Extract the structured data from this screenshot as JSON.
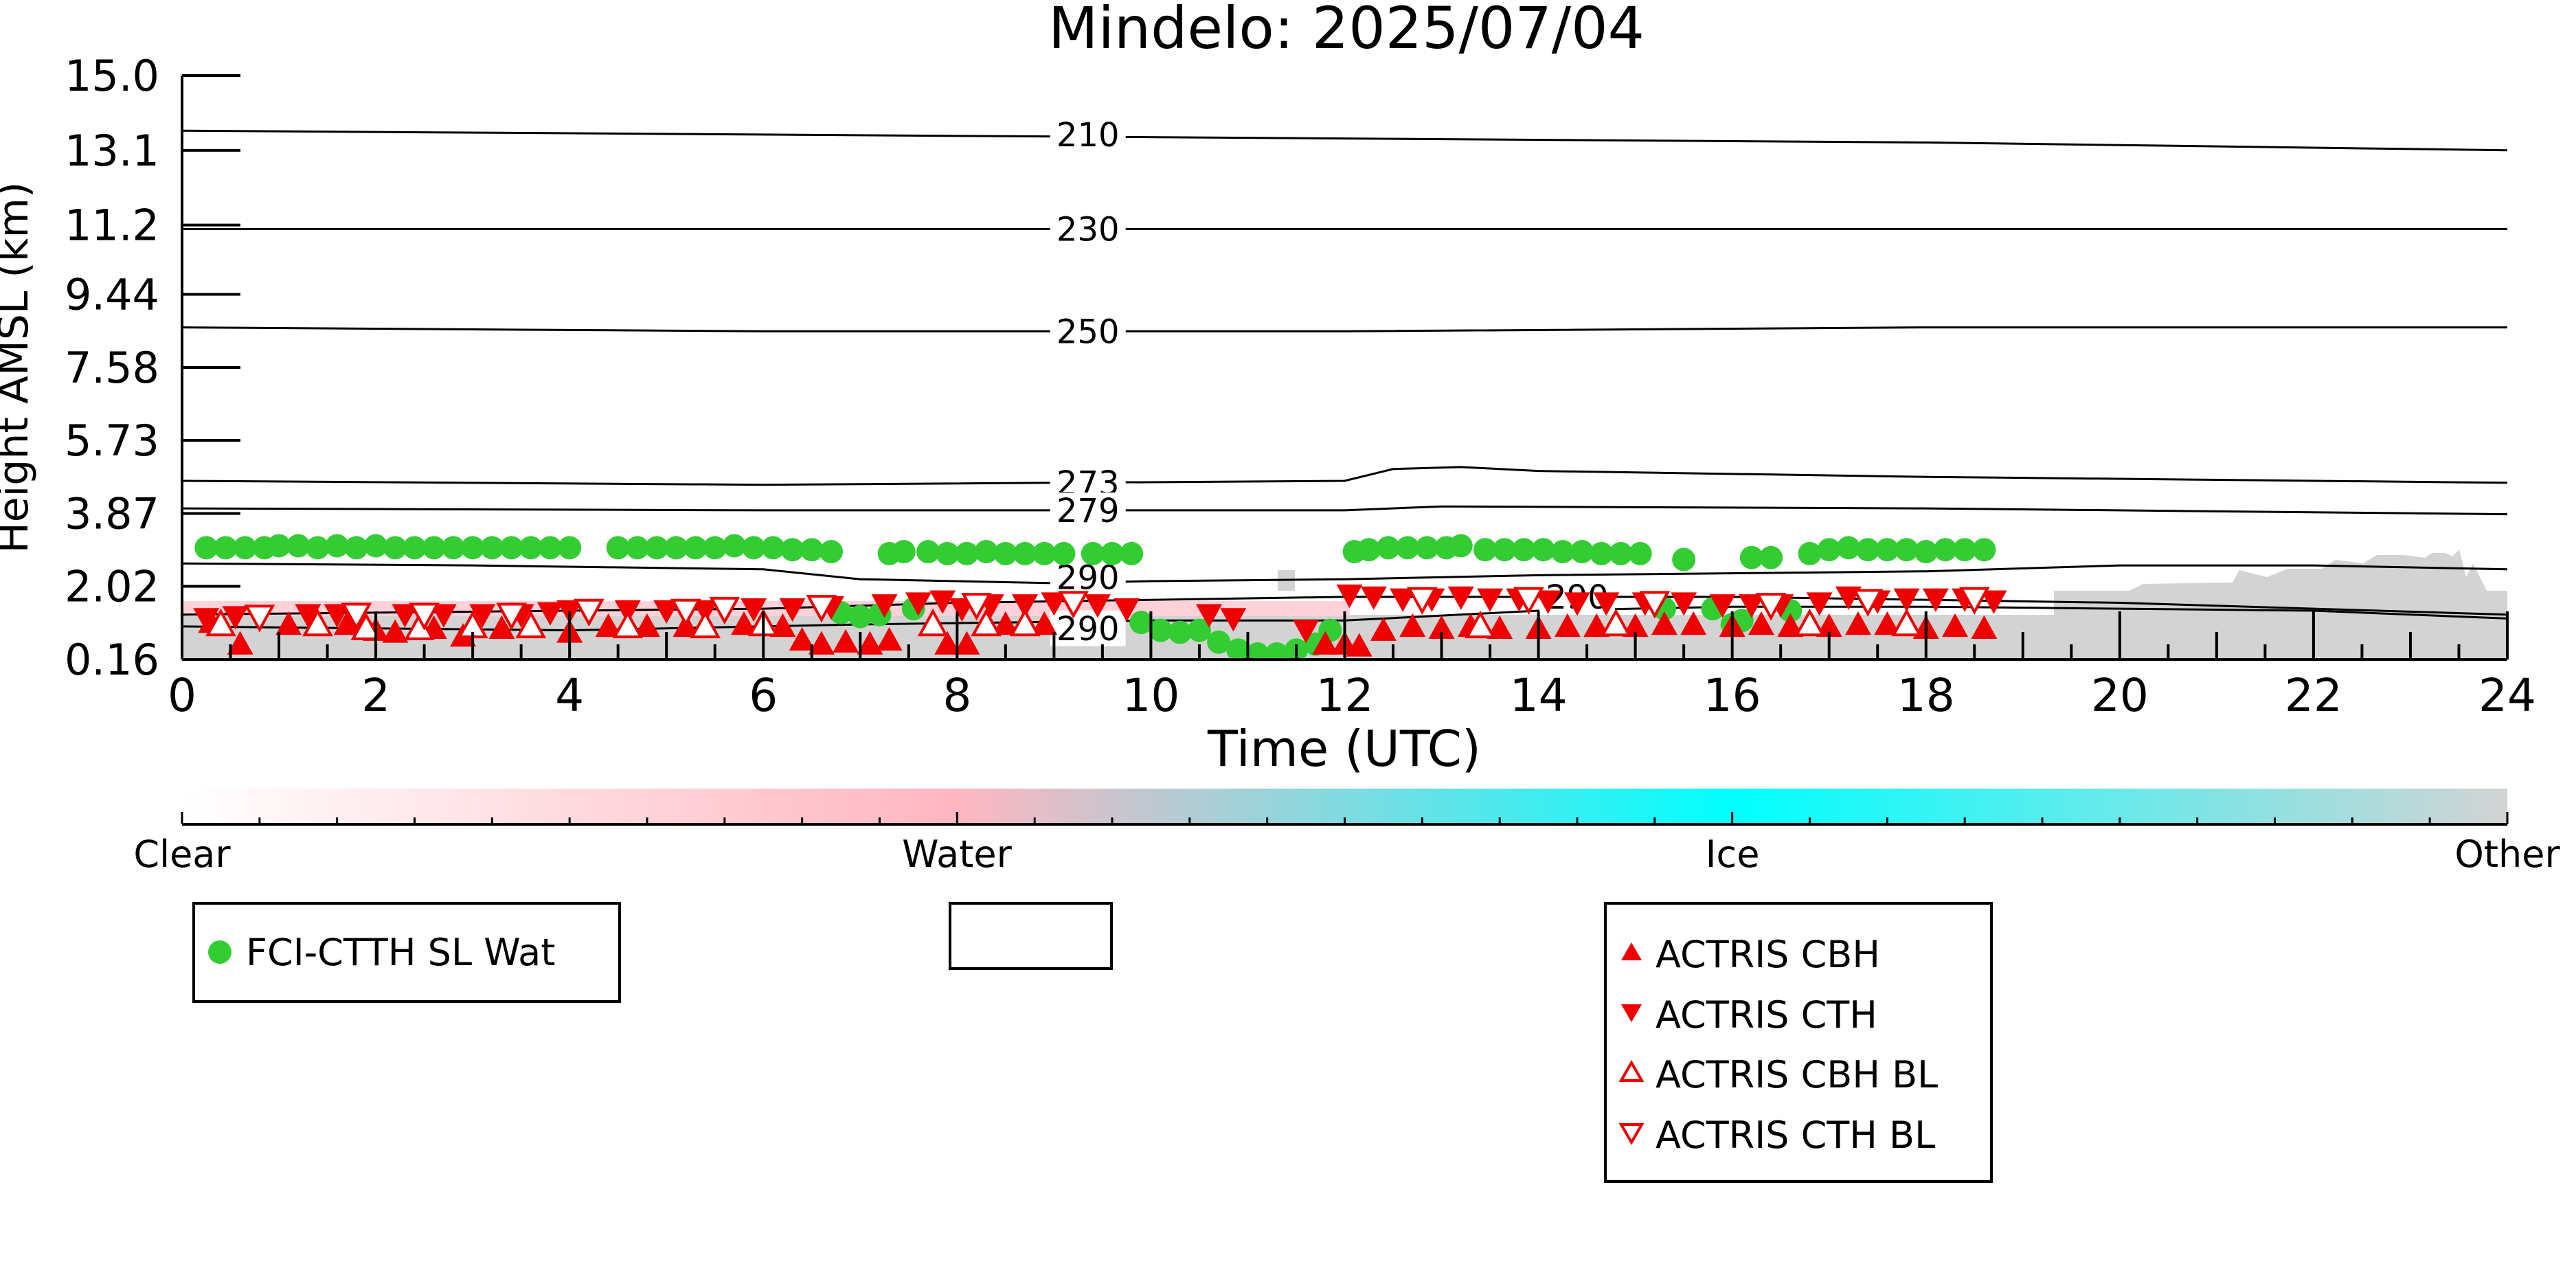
{
  "chart_data": {
    "type": "scatter",
    "title": "Mindelo: 2025/07/04",
    "xlabel": "Time (UTC)",
    "ylabel": "Height AMSL (km)",
    "xlim": [
      0,
      24
    ],
    "x_ticks": [
      "0",
      "2",
      "4",
      "6",
      "8",
      "10",
      "12",
      "14",
      "16",
      "18",
      "20",
      "22",
      "24"
    ],
    "y_ticks": [
      "0.16",
      "2.02",
      "3.87",
      "5.73",
      "7.58",
      "9.44",
      "11.2",
      "13.1",
      "15.0"
    ],
    "ylim": [
      0.16,
      15.0
    ],
    "grid": false,
    "contours": [
      {
        "label": "210",
        "points": [
          [
            0,
            13.6
          ],
          [
            6,
            13.5
          ],
          [
            12,
            13.4
          ],
          [
            18,
            13.3
          ],
          [
            24,
            13.1
          ]
        ]
      },
      {
        "label": "230",
        "points": [
          [
            0,
            11.1
          ],
          [
            6,
            11.1
          ],
          [
            12,
            11.1
          ],
          [
            18,
            11.1
          ],
          [
            24,
            11.1
          ]
        ]
      },
      {
        "label": "250",
        "points": [
          [
            0,
            8.6
          ],
          [
            6,
            8.5
          ],
          [
            12,
            8.5
          ],
          [
            18,
            8.6
          ],
          [
            24,
            8.6
          ]
        ]
      },
      {
        "label": "273",
        "points": [
          [
            0,
            4.7
          ],
          [
            6,
            4.6
          ],
          [
            12,
            4.7
          ],
          [
            12.5,
            5.0
          ],
          [
            13.2,
            5.05
          ],
          [
            14,
            4.95
          ],
          [
            18,
            4.8
          ],
          [
            24,
            4.65
          ]
        ]
      },
      {
        "label": "279",
        "points": [
          [
            0,
            4.0
          ],
          [
            6,
            3.95
          ],
          [
            12,
            3.95
          ],
          [
            13,
            4.05
          ],
          [
            18,
            4.0
          ],
          [
            24,
            3.85
          ]
        ]
      },
      {
        "label": "290",
        "points": [
          [
            0,
            2.6
          ],
          [
            3,
            2.55
          ],
          [
            6,
            2.45
          ],
          [
            7,
            2.2
          ],
          [
            9,
            2.1
          ],
          [
            10,
            2.15
          ],
          [
            12,
            2.2
          ],
          [
            14,
            2.3
          ],
          [
            18,
            2.4
          ],
          [
            20,
            2.55
          ],
          [
            22,
            2.55
          ],
          [
            24,
            2.45
          ]
        ]
      },
      {
        "label": "290",
        "points": [
          [
            0,
            1.0
          ],
          [
            4,
            0.9
          ],
          [
            7,
            1.05
          ],
          [
            10,
            1.15
          ],
          [
            12,
            1.15
          ],
          [
            14,
            1.4
          ],
          [
            16,
            1.5
          ],
          [
            18,
            1.5
          ],
          [
            22,
            1.4
          ],
          [
            24,
            1.2
          ]
        ]
      },
      {
        "label": "290",
        "points": [
          [
            0,
            1.3
          ],
          [
            6,
            1.45
          ],
          [
            8,
            1.6
          ],
          [
            12,
            1.75
          ],
          [
            16,
            1.75
          ],
          [
            20,
            1.6
          ],
          [
            24,
            1.3
          ]
        ]
      }
    ],
    "contour_label_positions": [
      {
        "label": "210",
        "x": 9.35,
        "y": 13.5
      },
      {
        "label": "230",
        "x": 9.35,
        "y": 11.1
      },
      {
        "label": "250",
        "x": 9.35,
        "y": 8.5
      },
      {
        "label": "273",
        "x": 9.35,
        "y": 4.65
      },
      {
        "label": "279",
        "x": 9.35,
        "y": 3.95
      },
      {
        "label": "290",
        "x": 9.35,
        "y": 2.25
      },
      {
        "label": "290",
        "x": 14.4,
        "y": 1.75
      },
      {
        "label": "290",
        "x": 9.35,
        "y": 0.95
      }
    ],
    "cloud_type_colorbar": {
      "labels": [
        "Clear",
        "Water",
        "Ice",
        "Other"
      ],
      "colors": [
        "#ffffff",
        "#ffb6c1",
        "#00ffff",
        "#d3d3d3"
      ]
    },
    "series": [
      {
        "name": "FCI-CTTH SL Wat",
        "marker": "circle",
        "color": "#33cc33",
        "points": [
          [
            0.25,
            3.0
          ],
          [
            0.45,
            3.0
          ],
          [
            0.65,
            3.0
          ],
          [
            0.85,
            3.0
          ],
          [
            1.0,
            3.05
          ],
          [
            1.2,
            3.05
          ],
          [
            1.4,
            3.0
          ],
          [
            1.6,
            3.05
          ],
          [
            1.8,
            3.0
          ],
          [
            2.0,
            3.05
          ],
          [
            2.2,
            3.0
          ],
          [
            2.4,
            3.0
          ],
          [
            2.6,
            3.0
          ],
          [
            2.8,
            3.0
          ],
          [
            3.0,
            3.0
          ],
          [
            3.2,
            3.0
          ],
          [
            3.4,
            3.0
          ],
          [
            3.6,
            3.0
          ],
          [
            3.8,
            3.0
          ],
          [
            4.0,
            3.0
          ],
          [
            4.5,
            3.0
          ],
          [
            4.7,
            3.0
          ],
          [
            4.9,
            3.0
          ],
          [
            5.1,
            3.0
          ],
          [
            5.3,
            3.0
          ],
          [
            5.5,
            3.0
          ],
          [
            5.7,
            3.05
          ],
          [
            5.9,
            3.0
          ],
          [
            6.1,
            3.0
          ],
          [
            6.3,
            2.95
          ],
          [
            6.5,
            2.95
          ],
          [
            6.7,
            2.9
          ],
          [
            7.3,
            2.85
          ],
          [
            7.45,
            2.9
          ],
          [
            7.7,
            2.9
          ],
          [
            7.9,
            2.85
          ],
          [
            8.1,
            2.85
          ],
          [
            8.3,
            2.9
          ],
          [
            8.5,
            2.85
          ],
          [
            8.7,
            2.85
          ],
          [
            8.9,
            2.85
          ],
          [
            9.1,
            2.85
          ],
          [
            9.4,
            2.85
          ],
          [
            9.6,
            2.85
          ],
          [
            9.8,
            2.85
          ],
          [
            6.8,
            1.35
          ],
          [
            7.0,
            1.25
          ],
          [
            7.2,
            1.3
          ],
          [
            7.55,
            1.45
          ],
          [
            9.9,
            1.1
          ],
          [
            10.1,
            0.9
          ],
          [
            10.3,
            0.85
          ],
          [
            10.5,
            0.9
          ],
          [
            10.7,
            0.6
          ],
          [
            10.9,
            0.4
          ],
          [
            11.1,
            0.3
          ],
          [
            11.3,
            0.3
          ],
          [
            11.5,
            0.4
          ],
          [
            11.7,
            0.55
          ],
          [
            11.85,
            0.9
          ],
          [
            12.1,
            2.9
          ],
          [
            12.25,
            2.95
          ],
          [
            12.45,
            3.0
          ],
          [
            12.65,
            3.0
          ],
          [
            12.85,
            3.0
          ],
          [
            13.05,
            3.0
          ],
          [
            13.2,
            3.05
          ],
          [
            13.45,
            2.95
          ],
          [
            13.65,
            2.95
          ],
          [
            13.85,
            2.95
          ],
          [
            14.05,
            2.95
          ],
          [
            14.25,
            2.9
          ],
          [
            14.45,
            2.9
          ],
          [
            14.65,
            2.85
          ],
          [
            14.85,
            2.85
          ],
          [
            15.05,
            2.85
          ],
          [
            15.5,
            2.7
          ],
          [
            16.2,
            2.75
          ],
          [
            16.4,
            2.75
          ],
          [
            16.8,
            2.85
          ],
          [
            17.0,
            2.95
          ],
          [
            17.2,
            3.0
          ],
          [
            17.4,
            2.95
          ],
          [
            17.6,
            2.95
          ],
          [
            17.8,
            2.95
          ],
          [
            18.0,
            2.9
          ],
          [
            18.2,
            2.95
          ],
          [
            18.4,
            2.95
          ],
          [
            18.6,
            2.95
          ],
          [
            15.3,
            1.45
          ],
          [
            15.8,
            1.45
          ],
          [
            16.0,
            1.05
          ],
          [
            16.1,
            1.15
          ],
          [
            16.6,
            1.4
          ]
        ]
      },
      {
        "name": "ACTRIS CBH",
        "marker": "triangle-up-filled",
        "color": "#ee0000",
        "points": [
          [
            0.3,
            1.1
          ],
          [
            0.6,
            0.55
          ],
          [
            1.1,
            1.05
          ],
          [
            1.7,
            1.05
          ],
          [
            2.0,
            0.9
          ],
          [
            2.2,
            0.85
          ],
          [
            2.6,
            0.95
          ],
          [
            2.9,
            0.75
          ],
          [
            3.3,
            0.95
          ],
          [
            4.0,
            0.85
          ],
          [
            4.4,
            1.0
          ],
          [
            4.8,
            1.0
          ],
          [
            5.2,
            1.0
          ],
          [
            5.8,
            1.05
          ],
          [
            6.2,
            1.0
          ],
          [
            6.4,
            0.65
          ],
          [
            6.6,
            0.55
          ],
          [
            6.85,
            0.6
          ],
          [
            7.1,
            0.55
          ],
          [
            7.3,
            0.65
          ],
          [
            7.9,
            0.55
          ],
          [
            8.1,
            0.55
          ],
          [
            8.5,
            1.05
          ],
          [
            8.9,
            1.05
          ],
          [
            11.8,
            0.55
          ],
          [
            12.0,
            0.55
          ],
          [
            12.15,
            0.5
          ],
          [
            12.4,
            0.9
          ],
          [
            12.7,
            1.0
          ],
          [
            13.0,
            0.95
          ],
          [
            13.3,
            1.0
          ],
          [
            13.6,
            0.95
          ],
          [
            14.0,
            0.95
          ],
          [
            14.3,
            1.0
          ],
          [
            14.6,
            1.0
          ],
          [
            15.0,
            1.0
          ],
          [
            15.3,
            1.05
          ],
          [
            15.6,
            1.05
          ],
          [
            16.0,
            1.0
          ],
          [
            16.3,
            1.05
          ],
          [
            16.6,
            1.0
          ],
          [
            17.0,
            1.0
          ],
          [
            17.3,
            1.05
          ],
          [
            17.6,
            1.05
          ],
          [
            18.0,
            0.95
          ],
          [
            18.3,
            1.0
          ],
          [
            18.6,
            0.95
          ]
        ]
      },
      {
        "name": "ACTRIS CTH",
        "marker": "triangle-down-filled",
        "color": "#ee0000",
        "points": [
          [
            0.25,
            1.2
          ],
          [
            0.55,
            1.25
          ],
          [
            1.3,
            1.3
          ],
          [
            1.6,
            1.3
          ],
          [
            2.3,
            1.3
          ],
          [
            2.7,
            1.3
          ],
          [
            3.1,
            1.3
          ],
          [
            3.5,
            1.3
          ],
          [
            3.8,
            1.35
          ],
          [
            4.0,
            1.4
          ],
          [
            4.6,
            1.4
          ],
          [
            5.0,
            1.4
          ],
          [
            5.4,
            1.4
          ],
          [
            5.9,
            1.45
          ],
          [
            6.3,
            1.45
          ],
          [
            6.7,
            1.5
          ],
          [
            7.25,
            1.55
          ],
          [
            7.6,
            1.6
          ],
          [
            7.85,
            1.65
          ],
          [
            8.05,
            1.45
          ],
          [
            8.35,
            1.55
          ],
          [
            8.7,
            1.55
          ],
          [
            9.0,
            1.6
          ],
          [
            9.45,
            1.55
          ],
          [
            9.75,
            1.45
          ],
          [
            10.6,
            1.3
          ],
          [
            10.85,
            1.2
          ],
          [
            11.6,
            0.9
          ],
          [
            12.05,
            1.8
          ],
          [
            12.3,
            1.75
          ],
          [
            12.6,
            1.7
          ],
          [
            12.9,
            1.7
          ],
          [
            13.2,
            1.75
          ],
          [
            13.5,
            1.7
          ],
          [
            13.8,
            1.7
          ],
          [
            14.1,
            1.65
          ],
          [
            14.4,
            1.6
          ],
          [
            14.7,
            1.6
          ],
          [
            15.1,
            1.6
          ],
          [
            15.5,
            1.6
          ],
          [
            15.9,
            1.55
          ],
          [
            16.2,
            1.55
          ],
          [
            16.5,
            1.55
          ],
          [
            16.9,
            1.6
          ],
          [
            17.2,
            1.75
          ],
          [
            17.5,
            1.65
          ],
          [
            17.8,
            1.7
          ],
          [
            18.1,
            1.7
          ],
          [
            18.4,
            1.7
          ],
          [
            18.7,
            1.65
          ]
        ]
      },
      {
        "name": "ACTRIS CBH BL",
        "marker": "triangle-up-open",
        "color": "#ee0000",
        "points": [
          [
            0.4,
            1.05
          ],
          [
            1.4,
            1.05
          ],
          [
            1.9,
            0.95
          ],
          [
            2.45,
            0.95
          ],
          [
            3.0,
            1.0
          ],
          [
            3.6,
            1.0
          ],
          [
            4.6,
            1.0
          ],
          [
            5.4,
            1.0
          ],
          [
            6.0,
            1.05
          ],
          [
            7.75,
            1.05
          ],
          [
            8.3,
            1.05
          ],
          [
            8.7,
            1.05
          ],
          [
            13.4,
            1.0
          ],
          [
            14.8,
            1.05
          ],
          [
            16.8,
            1.05
          ],
          [
            17.8,
            1.05
          ]
        ]
      },
      {
        "name": "ACTRIS CTH BL",
        "marker": "triangle-down-open",
        "color": "#ee0000",
        "points": [
          [
            0.8,
            1.25
          ],
          [
            1.8,
            1.3
          ],
          [
            2.5,
            1.3
          ],
          [
            3.4,
            1.3
          ],
          [
            4.2,
            1.4
          ],
          [
            5.2,
            1.4
          ],
          [
            5.6,
            1.45
          ],
          [
            6.6,
            1.5
          ],
          [
            8.2,
            1.55
          ],
          [
            9.2,
            1.6
          ],
          [
            12.8,
            1.7
          ],
          [
            13.9,
            1.7
          ],
          [
            15.2,
            1.6
          ],
          [
            16.4,
            1.55
          ],
          [
            17.4,
            1.65
          ],
          [
            18.5,
            1.7
          ]
        ]
      }
    ],
    "legend_placement": "below-plot"
  }
}
